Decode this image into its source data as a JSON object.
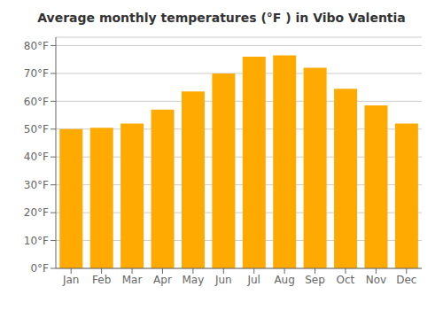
{
  "chart_data": {
    "type": "bar",
    "title": "Average monthly temperatures (°F ) in Vibo Valentia",
    "categories": [
      "Jan",
      "Feb",
      "Mar",
      "Apr",
      "May",
      "Jun",
      "Jul",
      "Aug",
      "Sep",
      "Oct",
      "Nov",
      "Dec"
    ],
    "values": [
      50,
      50.5,
      52,
      57,
      63.5,
      70,
      76,
      76.5,
      72,
      64.5,
      58.5,
      52
    ],
    "color": "#FFAA00",
    "ylim": [
      0,
      83
    ],
    "yticks": [
      {
        "value": 0,
        "label": "0°F"
      },
      {
        "value": 10,
        "label": "10°F"
      },
      {
        "value": 20,
        "label": "20°F"
      },
      {
        "value": 30,
        "label": "30°F"
      },
      {
        "value": 40,
        "label": "40°F"
      },
      {
        "value": 50,
        "label": "50°F"
      },
      {
        "value": 60,
        "label": "60°F"
      },
      {
        "value": 70,
        "label": "70°F"
      },
      {
        "value": 80,
        "label": "80°F"
      }
    ],
    "grid": true
  }
}
